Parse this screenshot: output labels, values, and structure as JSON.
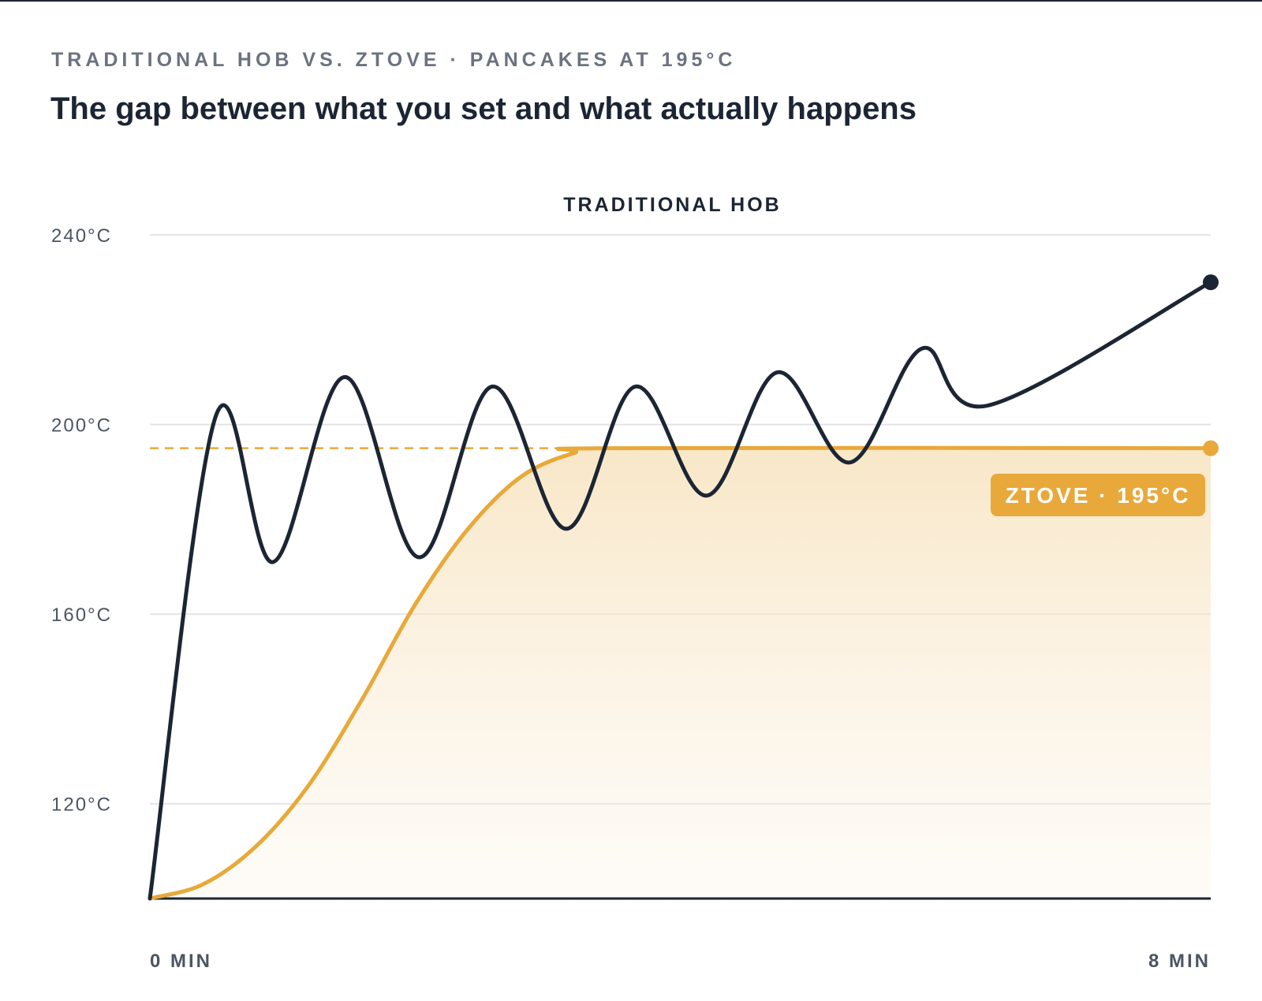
{
  "header": {
    "eyebrow": "TRADITIONAL HOB VS. ZTOVE · PANCAKES AT 195°C",
    "title": "The gap between what you set and what actually happens"
  },
  "colors": {
    "hob": "#1c2533",
    "ztove": "#e8a93a",
    "ztove_fill": "#f8e6c7",
    "grid": "#e2e4e8",
    "axis": "#1c2533"
  },
  "chart_data": {
    "type": "line",
    "title": "",
    "xlabel": "",
    "ylabel": "",
    "xlim": [
      0,
      8
    ],
    "ylim": [
      100,
      240
    ],
    "x_tick_labels": [
      {
        "value": 0,
        "label": "0 MIN"
      },
      {
        "value": 8,
        "label": "8 MIN"
      }
    ],
    "y_tick_labels": [
      {
        "value": 240,
        "label": "240°C"
      },
      {
        "value": 200,
        "label": "200°C"
      },
      {
        "value": 160,
        "label": "160°C"
      },
      {
        "value": 120,
        "label": "120°C"
      }
    ],
    "grid": true,
    "setpoint": {
      "value": 195,
      "style": "dashed"
    },
    "series": [
      {
        "name": "TRADITIONAL HOB",
        "label_position": "top-center",
        "end_marker": true,
        "points": [
          [
            0,
            100
          ],
          [
            0.5,
            202
          ],
          [
            0.93,
            171
          ],
          [
            1.47,
            210
          ],
          [
            2.03,
            172
          ],
          [
            2.58,
            208
          ],
          [
            3.14,
            178
          ],
          [
            3.66,
            208
          ],
          [
            4.2,
            185
          ],
          [
            4.73,
            211
          ],
          [
            5.28,
            192
          ],
          [
            5.82,
            216
          ],
          [
            6.32,
            204
          ],
          [
            8.0,
            230
          ]
        ]
      },
      {
        "name": "ZTOVE · 195°C",
        "label_position": "right",
        "end_marker": true,
        "filled": true,
        "points": [
          [
            0,
            100
          ],
          [
            0.4,
            103
          ],
          [
            0.8,
            111
          ],
          [
            1.2,
            124
          ],
          [
            1.6,
            142
          ],
          [
            2.0,
            162
          ],
          [
            2.4,
            178
          ],
          [
            2.8,
            189
          ],
          [
            3.2,
            194
          ],
          [
            3.5,
            195
          ],
          [
            8.0,
            195
          ]
        ]
      }
    ]
  }
}
